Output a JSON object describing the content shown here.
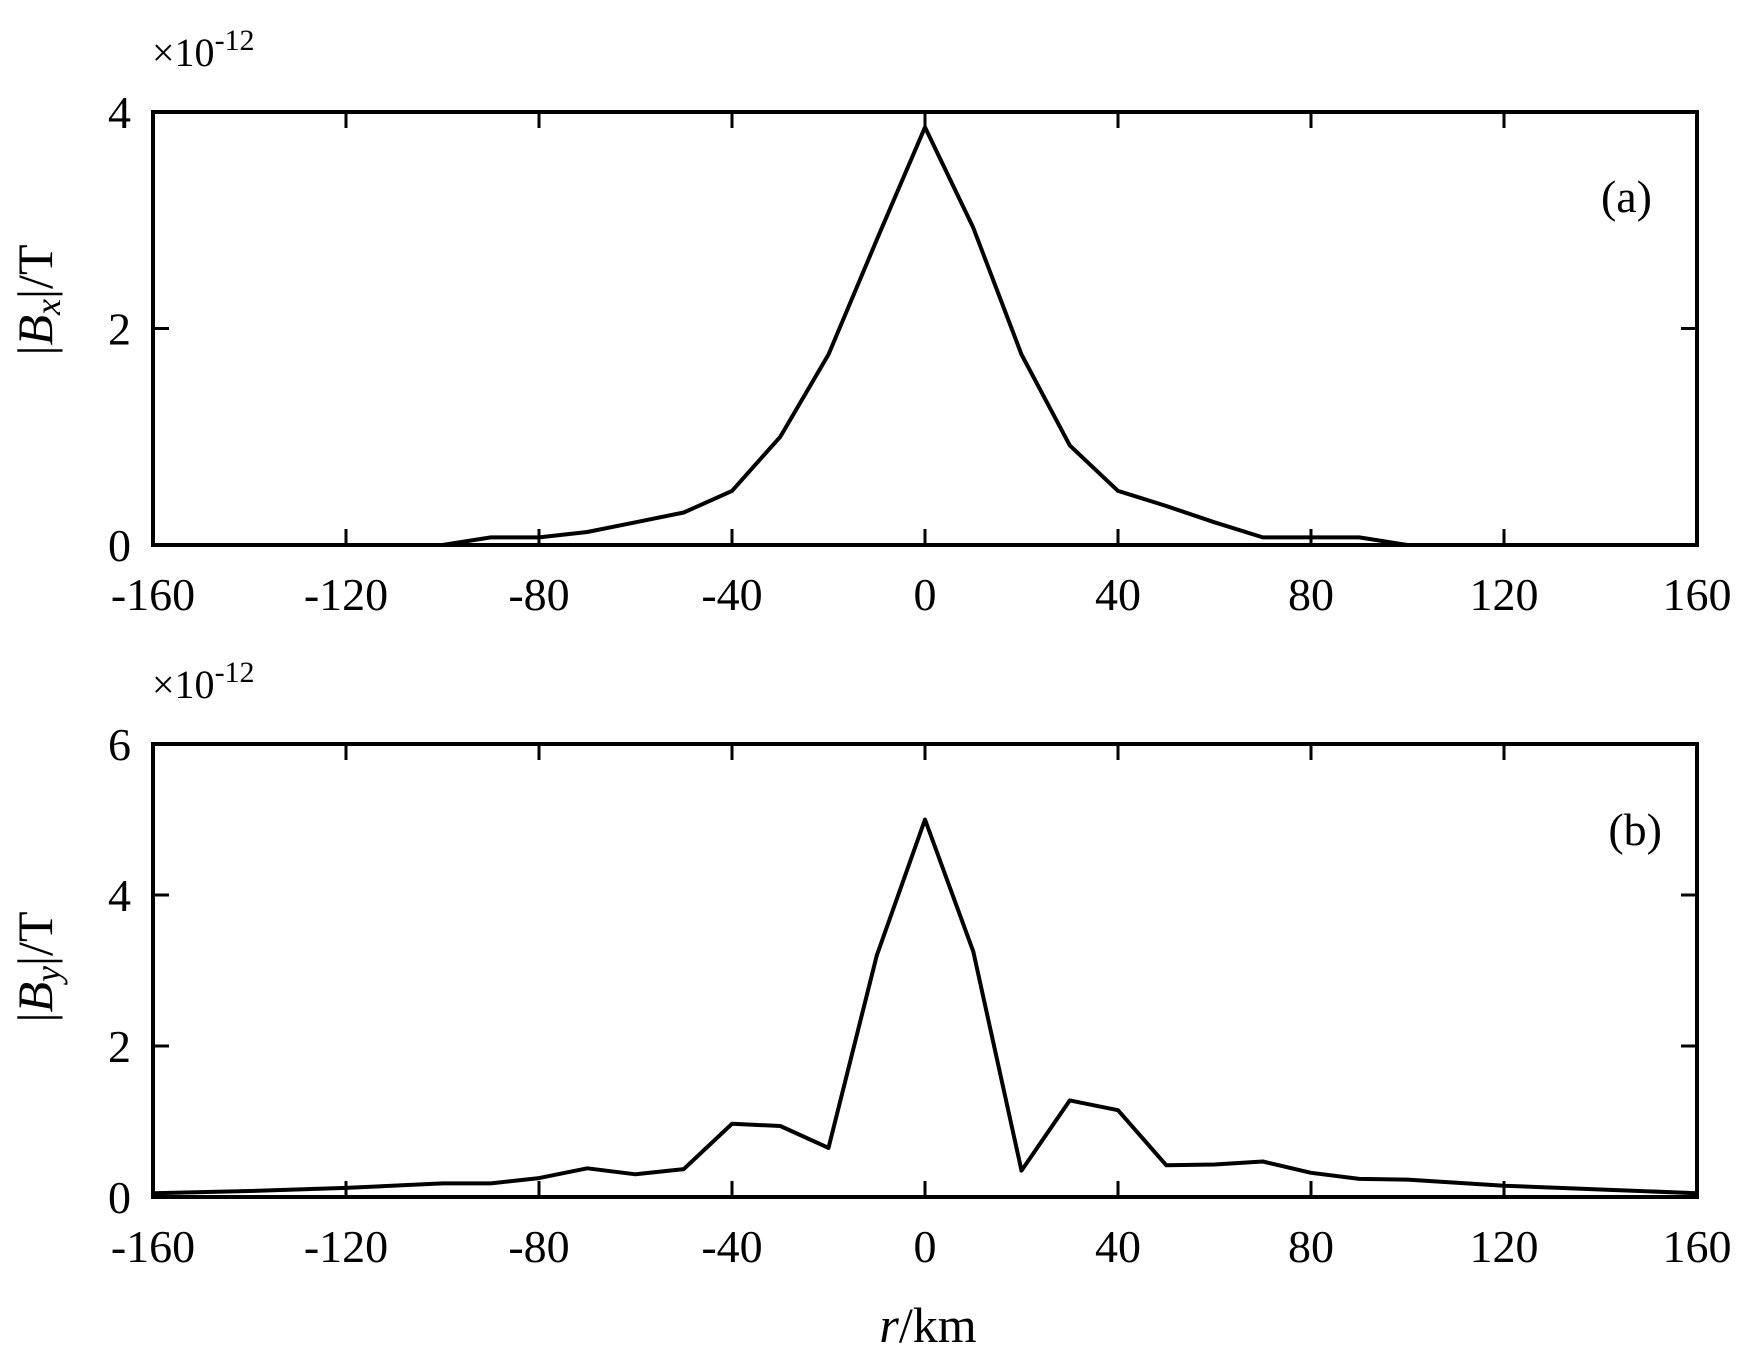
{
  "chart_data": [
    {
      "type": "line",
      "panel_label": "(a)",
      "multiplier": {
        "base": "×10",
        "exponent": "-12"
      },
      "ylabel": {
        "prefix": "|",
        "symbol": "B",
        "subscript": "x",
        "suffix": "|/T"
      },
      "xlabel": null,
      "xlim": [
        -160,
        160
      ],
      "ylim": [
        0,
        4
      ],
      "xticks": [
        -160,
        -120,
        -80,
        -40,
        0,
        40,
        80,
        120,
        160
      ],
      "yticks": [
        0,
        2,
        4
      ],
      "grid": false,
      "series": [
        {
          "x": [
            -160,
            -150,
            -140,
            -130,
            -120,
            -110,
            -100,
            -90,
            -80,
            -70,
            -60,
            -50,
            -40,
            -30,
            -20,
            -10,
            0,
            10,
            20,
            30,
            40,
            50,
            60,
            70,
            80,
            90,
            100,
            110,
            120,
            130,
            140,
            150,
            160
          ],
          "y": [
            0,
            0,
            0,
            0,
            0,
            0,
            0,
            0.07,
            0.07,
            0.12,
            0.21,
            0.3,
            0.5,
            1.0,
            1.76,
            2.82,
            3.86,
            2.93,
            1.76,
            0.92,
            0.5,
            0.36,
            0.21,
            0.07,
            0.07,
            0.07,
            0,
            0,
            0,
            0,
            0,
            0,
            0
          ]
        }
      ]
    },
    {
      "type": "line",
      "panel_label": "(b)",
      "multiplier": {
        "base": "×10",
        "exponent": "-12"
      },
      "ylabel": {
        "prefix": "|",
        "symbol": "B",
        "subscript": "y",
        "suffix": "|/T"
      },
      "xlabel": {
        "symbol": "r",
        "suffix": "/km"
      },
      "xlim": [
        -160,
        160
      ],
      "ylim": [
        0,
        6
      ],
      "xticks": [
        -160,
        -120,
        -80,
        -40,
        0,
        40,
        80,
        120,
        160
      ],
      "yticks": [
        0,
        2,
        4,
        6
      ],
      "grid": false,
      "series": [
        {
          "x": [
            -160,
            -140,
            -120,
            -100,
            -90,
            -80,
            -70,
            -60,
            -50,
            -40,
            -30,
            -20,
            -10,
            0,
            10,
            20,
            30,
            40,
            50,
            60,
            70,
            80,
            90,
            100,
            120,
            140,
            160
          ],
          "y": [
            0.05,
            0.08,
            0.12,
            0.18,
            0.18,
            0.25,
            0.38,
            0.3,
            0.37,
            0.97,
            0.94,
            0.65,
            3.2,
            5.0,
            3.25,
            0.35,
            1.28,
            1.15,
            0.42,
            0.43,
            0.47,
            0.32,
            0.24,
            0.23,
            0.15,
            0.1,
            0.05
          ]
        }
      ]
    }
  ]
}
